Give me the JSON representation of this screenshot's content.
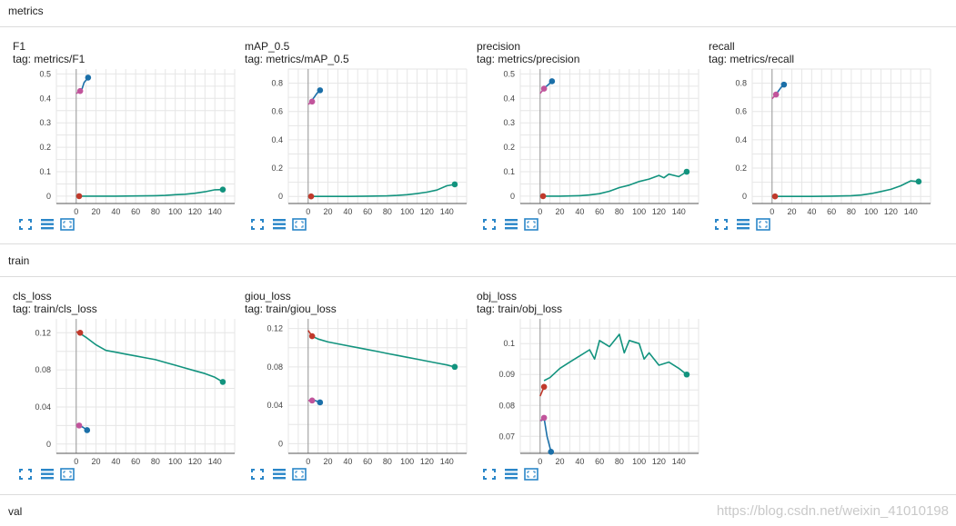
{
  "sections": [
    {
      "key": "metrics",
      "label": "metrics"
    },
    {
      "key": "train",
      "label": "train"
    },
    {
      "key": "val",
      "label": "val"
    }
  ],
  "watermark": "https://blog.csdn.net/weixin_41010198",
  "colors": {
    "main": "#12937e",
    "dark": "#1b6fa8",
    "red": "#c0392b",
    "pink": "#c1549b",
    "grid": "#e6e6e6"
  },
  "tools": [
    "fit-to-data-icon",
    "toggle-y-log-icon",
    "download-icon"
  ],
  "chart_data": [
    {
      "id": "f1",
      "type": "line",
      "title": "F1",
      "tag": "tag: metrics/F1",
      "xlim": [
        -20,
        160
      ],
      "ylim": [
        -0.03,
        0.52
      ],
      "xticks": [
        0,
        20,
        40,
        60,
        80,
        100,
        120,
        140
      ],
      "xtick_labels": [
        "0",
        "20",
        "40",
        "60",
        "80",
        "100",
        "120",
        "140"
      ],
      "yticks": [
        0,
        0.1,
        0.2,
        0.3,
        0.4,
        0.5
      ],
      "ytick_labels": [
        "0",
        "0.1",
        "0.2",
        "0.3",
        "0.4",
        "0.5"
      ],
      "series": [
        {
          "color": "#12937e",
          "marker_end": true,
          "x": [
            0,
            20,
            40,
            60,
            80,
            90,
            100,
            110,
            120,
            130,
            140,
            148
          ],
          "y": [
            0,
            0,
            0,
            0.001,
            0.002,
            0.003,
            0.006,
            0.008,
            0.012,
            0.018,
            0.026,
            0.027
          ]
        },
        {
          "color": "#1b6fa8",
          "marker_end": true,
          "x": [
            3,
            6,
            8,
            10,
            12
          ],
          "y": [
            0.425,
            0.44,
            0.465,
            0.475,
            0.485
          ]
        },
        {
          "color": "#c0392b",
          "marker_end": true,
          "x": [
            3
          ],
          "y": [
            0
          ]
        },
        {
          "color": "#c1549b",
          "marker_end": true,
          "x": [
            0,
            4
          ],
          "y": [
            0.42,
            0.43
          ]
        }
      ]
    },
    {
      "id": "map",
      "type": "line",
      "title": "mAP_0.5",
      "tag": "tag: metrics/mAP_0.5",
      "xlim": [
        -20,
        160
      ],
      "ylim": [
        -0.05,
        0.9
      ],
      "xticks": [
        0,
        20,
        40,
        60,
        80,
        100,
        120,
        140
      ],
      "xtick_labels": [
        "0",
        "20",
        "40",
        "60",
        "80",
        "100",
        "120",
        "140"
      ],
      "yticks": [
        0,
        0.2,
        0.4,
        0.6,
        0.8
      ],
      "ytick_labels": [
        "0",
        "0.2",
        "0.4",
        "0.6",
        "0.8"
      ],
      "series": [
        {
          "color": "#12937e",
          "marker_end": true,
          "x": [
            0,
            20,
            40,
            60,
            80,
            90,
            100,
            110,
            120,
            130,
            140,
            148
          ],
          "y": [
            0,
            0,
            0,
            0.002,
            0.004,
            0.007,
            0.012,
            0.02,
            0.03,
            0.045,
            0.075,
            0.085
          ]
        },
        {
          "color": "#1b6fa8",
          "marker_end": true,
          "x": [
            3,
            6,
            9,
            12
          ],
          "y": [
            0.67,
            0.7,
            0.73,
            0.75
          ]
        },
        {
          "color": "#c0392b",
          "marker_end": true,
          "x": [
            3
          ],
          "y": [
            0
          ]
        },
        {
          "color": "#c1549b",
          "marker_end": true,
          "x": [
            0,
            4
          ],
          "y": [
            0.65,
            0.67
          ]
        }
      ]
    },
    {
      "id": "precision",
      "type": "line",
      "title": "precision",
      "tag": "tag: metrics/precision",
      "xlim": [
        -20,
        160
      ],
      "ylim": [
        -0.03,
        0.52
      ],
      "xticks": [
        0,
        20,
        40,
        60,
        80,
        100,
        120,
        140
      ],
      "xtick_labels": [
        "0",
        "20",
        "40",
        "60",
        "80",
        "100",
        "120",
        "140"
      ],
      "yticks": [
        0,
        0.1,
        0.2,
        0.3,
        0.4,
        0.5
      ],
      "ytick_labels": [
        "0",
        "0.1",
        "0.2",
        "0.3",
        "0.4",
        "0.5"
      ],
      "series": [
        {
          "color": "#12937e",
          "marker_end": true,
          "x": [
            0,
            20,
            40,
            50,
            60,
            70,
            80,
            90,
            100,
            110,
            120,
            125,
            130,
            140,
            148
          ],
          "y": [
            0,
            0,
            0.002,
            0.005,
            0.01,
            0.02,
            0.035,
            0.045,
            0.06,
            0.07,
            0.085,
            0.075,
            0.09,
            0.08,
            0.1
          ]
        },
        {
          "color": "#1b6fa8",
          "marker_end": true,
          "x": [
            2,
            5,
            8,
            12
          ],
          "y": [
            0.43,
            0.445,
            0.455,
            0.47
          ]
        },
        {
          "color": "#c0392b",
          "marker_end": true,
          "x": [
            3
          ],
          "y": [
            0
          ]
        },
        {
          "color": "#c1549b",
          "marker_end": true,
          "x": [
            0,
            4
          ],
          "y": [
            0.42,
            0.44
          ]
        }
      ]
    },
    {
      "id": "recall",
      "type": "line",
      "title": "recall",
      "tag": "tag: metrics/recall",
      "xlim": [
        -20,
        160
      ],
      "ylim": [
        -0.05,
        0.9
      ],
      "xticks": [
        0,
        20,
        40,
        60,
        80,
        100,
        120,
        140
      ],
      "xtick_labels": [
        "0",
        "20",
        "40",
        "60",
        "80",
        "100",
        "120",
        "140"
      ],
      "yticks": [
        0,
        0.2,
        0.4,
        0.6,
        0.8
      ],
      "ytick_labels": [
        "0",
        "0.2",
        "0.4",
        "0.6",
        "0.8"
      ],
      "series": [
        {
          "color": "#12937e",
          "marker_end": true,
          "x": [
            0,
            20,
            40,
            60,
            80,
            90,
            100,
            110,
            120,
            130,
            140,
            148
          ],
          "y": [
            0,
            0,
            0,
            0.002,
            0.005,
            0.01,
            0.02,
            0.035,
            0.05,
            0.075,
            0.11,
            0.105
          ]
        },
        {
          "color": "#1b6fa8",
          "marker_end": true,
          "x": [
            3,
            6,
            9,
            12
          ],
          "y": [
            0.72,
            0.74,
            0.77,
            0.79
          ]
        },
        {
          "color": "#c0392b",
          "marker_end": true,
          "x": [
            3
          ],
          "y": [
            0
          ]
        },
        {
          "color": "#c1549b",
          "marker_end": true,
          "x": [
            0,
            4
          ],
          "y": [
            0.69,
            0.72
          ]
        }
      ]
    },
    {
      "id": "cls_loss",
      "type": "line",
      "title": "cls_loss",
      "tag": "tag: train/cls_loss",
      "xlim": [
        -20,
        160
      ],
      "ylim": [
        -0.01,
        0.135
      ],
      "xticks": [
        0,
        20,
        40,
        60,
        80,
        100,
        120,
        140
      ],
      "xtick_labels": [
        "0",
        "20",
        "40",
        "60",
        "80",
        "100",
        "120",
        "140"
      ],
      "yticks": [
        0,
        0.04,
        0.08,
        0.12
      ],
      "ytick_labels": [
        "0",
        "0.04",
        "0.08",
        "0.12"
      ],
      "series": [
        {
          "color": "#12937e",
          "marker_end": true,
          "x": [
            3,
            10,
            20,
            30,
            40,
            50,
            60,
            70,
            80,
            90,
            100,
            110,
            120,
            130,
            140,
            148
          ],
          "y": [
            0.12,
            0.115,
            0.107,
            0.101,
            0.099,
            0.097,
            0.095,
            0.093,
            0.091,
            0.088,
            0.085,
            0.082,
            0.079,
            0.076,
            0.072,
            0.067
          ]
        },
        {
          "color": "#1b6fa8",
          "marker_end": true,
          "x": [
            3,
            7,
            11
          ],
          "y": [
            0.02,
            0.018,
            0.015
          ]
        },
        {
          "color": "#c0392b",
          "marker_end": true,
          "x": [
            0,
            4
          ],
          "y": [
            0.121,
            0.12
          ]
        },
        {
          "color": "#c1549b",
          "marker_end": true,
          "x": [
            0,
            3
          ],
          "y": [
            0.021,
            0.02
          ]
        }
      ]
    },
    {
      "id": "giou_loss",
      "type": "line",
      "title": "giou_loss",
      "tag": "tag: train/giou_loss",
      "xlim": [
        -20,
        160
      ],
      "ylim": [
        -0.01,
        0.13
      ],
      "xticks": [
        0,
        20,
        40,
        60,
        80,
        100,
        120,
        140
      ],
      "xtick_labels": [
        "0",
        "20",
        "40",
        "60",
        "80",
        "100",
        "120",
        "140"
      ],
      "yticks": [
        0,
        0.04,
        0.08,
        0.12
      ],
      "ytick_labels": [
        "0",
        "0.04",
        "0.08",
        "0.12"
      ],
      "series": [
        {
          "color": "#12937e",
          "marker_end": true,
          "x": [
            4,
            10,
            20,
            30,
            40,
            50,
            60,
            70,
            80,
            90,
            100,
            110,
            120,
            130,
            140,
            148
          ],
          "y": [
            0.112,
            0.109,
            0.106,
            0.104,
            0.102,
            0.1,
            0.098,
            0.096,
            0.094,
            0.092,
            0.09,
            0.088,
            0.086,
            0.084,
            0.082,
            0.08
          ]
        },
        {
          "color": "#1b6fa8",
          "marker_end": true,
          "x": [
            3,
            7,
            12
          ],
          "y": [
            0.045,
            0.045,
            0.043
          ]
        },
        {
          "color": "#c0392b",
          "marker_end": true,
          "x": [
            0,
            4
          ],
          "y": [
            0.118,
            0.112
          ]
        },
        {
          "color": "#c1549b",
          "marker_end": true,
          "x": [
            0,
            4
          ],
          "y": [
            0.045,
            0.045
          ]
        }
      ]
    },
    {
      "id": "obj_loss",
      "type": "line",
      "title": "obj_loss",
      "tag": "tag: train/obj_loss",
      "xlim": [
        -20,
        160
      ],
      "ylim": [
        0.0645,
        0.108
      ],
      "xticks": [
        0,
        20,
        40,
        60,
        80,
        100,
        120,
        140
      ],
      "xtick_labels": [
        "0",
        "20",
        "40",
        "60",
        "80",
        "100",
        "120",
        "140"
      ],
      "yticks": [
        0.07,
        0.08,
        0.09,
        0.1
      ],
      "ytick_labels": [
        "0.07",
        "0.08",
        "0.09",
        "0.1"
      ],
      "series": [
        {
          "color": "#12937e",
          "marker_end": true,
          "x": [
            4,
            10,
            20,
            30,
            40,
            50,
            55,
            60,
            70,
            80,
            85,
            90,
            100,
            105,
            110,
            120,
            130,
            140,
            148
          ],
          "y": [
            0.088,
            0.089,
            0.092,
            0.094,
            0.096,
            0.098,
            0.095,
            0.101,
            0.099,
            0.103,
            0.097,
            0.101,
            0.1,
            0.095,
            0.097,
            0.093,
            0.094,
            0.092,
            0.09
          ]
        },
        {
          "color": "#1b6fa8",
          "marker_end": true,
          "x": [
            1,
            4,
            7,
            11
          ],
          "y": [
            0.075,
            0.076,
            0.07,
            0.065
          ]
        },
        {
          "color": "#c0392b",
          "marker_end": true,
          "x": [
            0,
            4
          ],
          "y": [
            0.083,
            0.086
          ]
        },
        {
          "color": "#c1549b",
          "marker_end": true,
          "x": [
            0,
            4
          ],
          "y": [
            0.075,
            0.076
          ]
        }
      ]
    }
  ]
}
